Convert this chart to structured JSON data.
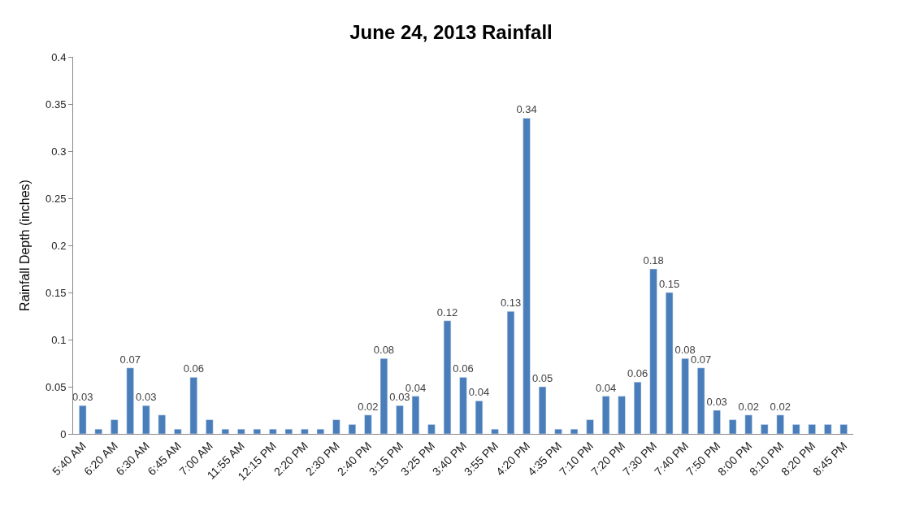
{
  "chart_data": {
    "type": "bar",
    "title": "June 24, 2013 Rainfall",
    "ylabel": "Rainfall Depth (inches)",
    "categories": [
      "5:40 AM",
      null,
      "6:20 AM",
      null,
      "6:30 AM",
      null,
      "6:45 AM",
      null,
      "7:00 AM",
      null,
      "11:55 AM",
      null,
      "12:15 PM",
      null,
      "2:20 PM",
      null,
      "2:30 PM",
      null,
      "2:40 PM",
      null,
      "3:15 PM",
      null,
      "3:25 PM",
      null,
      "3:40 PM",
      null,
      "3:55 PM",
      null,
      "4:20 PM",
      null,
      "4:35 PM",
      null,
      "7:10 PM",
      null,
      "7:20 PM",
      null,
      "7:30 PM",
      null,
      "7:40 PM",
      null,
      "7:50 PM",
      null,
      "8:00 PM",
      null,
      "8:10 PM",
      null,
      "8:20 PM",
      null,
      "8:45 PM"
    ],
    "values": [
      0.03,
      0.005,
      0.015,
      0.07,
      0.03,
      0.02,
      0.005,
      0.06,
      0.015,
      0.005,
      0.005,
      0.005,
      0.005,
      0.005,
      0.005,
      0.005,
      0.015,
      0.01,
      0.02,
      0.08,
      0.03,
      0.04,
      0.01,
      0.12,
      0.06,
      0.035,
      0.005,
      0.13,
      0.335,
      0.05,
      0.005,
      0.005,
      0.015,
      0.04,
      0.04,
      0.055,
      0.175,
      0.15,
      0.08,
      0.07,
      0.025,
      0.015,
      0.02,
      0.01,
      0.02,
      0.01,
      0.01,
      0.01,
      0.01
    ],
    "value_labels": [
      "0.03",
      null,
      null,
      "0.07",
      "0.03",
      null,
      null,
      "0.06",
      null,
      null,
      null,
      null,
      null,
      null,
      null,
      null,
      null,
      null,
      "0.02",
      "0.08",
      "0.03",
      "0.04",
      null,
      "0.12",
      "0.06",
      "0.04",
      null,
      "0.13",
      "0.34",
      "0.05",
      null,
      null,
      null,
      "0.04",
      null,
      "0.06",
      "0.18",
      "0.15",
      "0.08",
      "0.07",
      "0.03",
      null,
      "0.02",
      null,
      "0.02",
      null,
      null,
      null,
      null
    ],
    "color": "#4a7ebb",
    "ylim": [
      0,
      0.4
    ],
    "yticks": [
      0,
      0.05,
      0.1,
      0.15,
      0.2,
      0.25,
      0.3,
      0.35,
      0.4
    ]
  }
}
